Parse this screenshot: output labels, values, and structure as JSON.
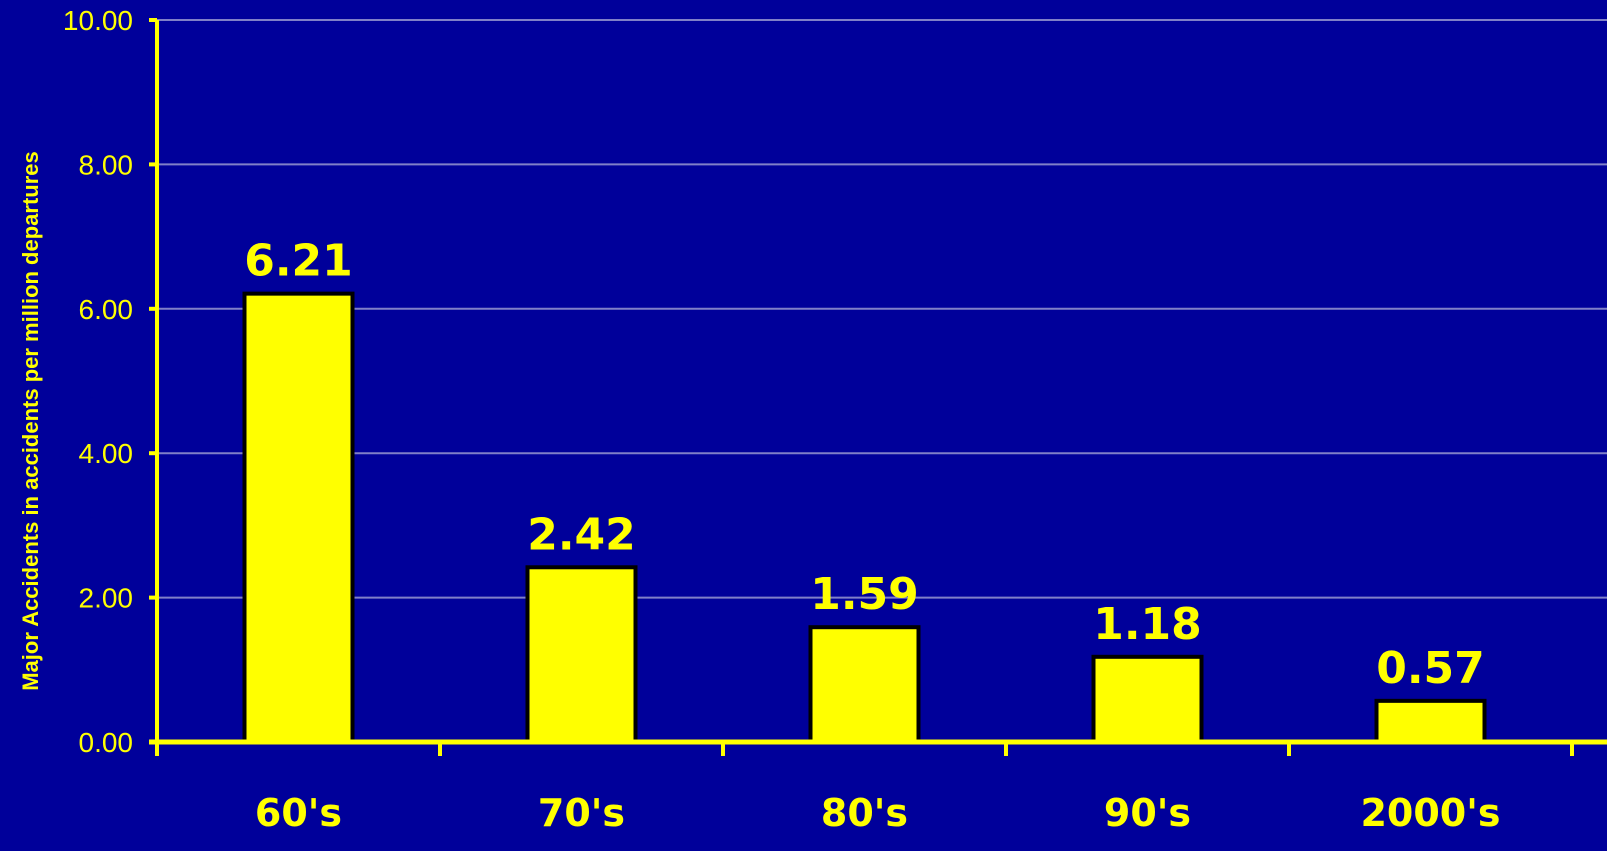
{
  "chart_data": {
    "type": "bar",
    "categories": [
      "60's",
      "70's",
      "80's",
      "90's",
      "2000's"
    ],
    "values": [
      6.21,
      2.42,
      1.59,
      1.18,
      0.57
    ],
    "data_labels": [
      "6.21",
      "2.42",
      "1.59",
      "1.18",
      "0.57"
    ],
    "title": "",
    "xlabel": "",
    "ylabel": "Major Accidents in accidents  per million departures",
    "ylim": [
      0,
      10
    ],
    "yticks": [
      0,
      2,
      4,
      6,
      8,
      10
    ],
    "ytick_labels": [
      "0.00",
      "2.00",
      "4.00",
      "6.00",
      "8.00",
      "10.00"
    ],
    "grid": true,
    "legend": "none",
    "colors": {
      "background": "#00009a",
      "bar_fill": "#ffff00",
      "bar_stroke": "#000000",
      "axis": "#ffff00",
      "gridline": "#8080c8",
      "text": "#ffff00"
    }
  }
}
